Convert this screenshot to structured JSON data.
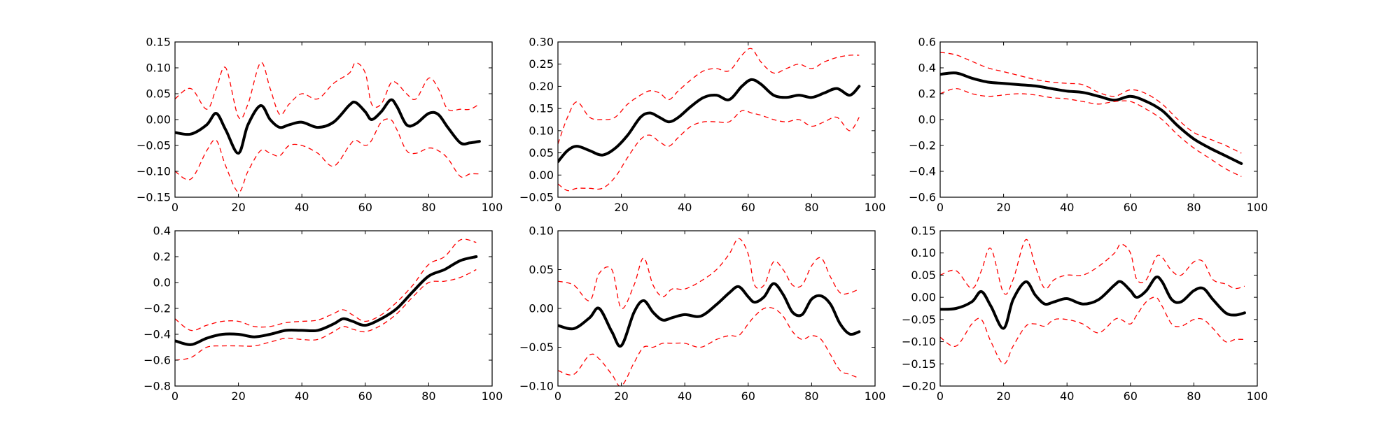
{
  "chart_data": [
    {
      "type": "line",
      "xlim": [
        0,
        100
      ],
      "ylim": [
        -0.15,
        0.15
      ],
      "x_ticks": [
        0,
        20,
        40,
        60,
        80,
        100
      ],
      "y_ticks": [
        -0.15,
        -0.1,
        -0.05,
        0.0,
        0.05,
        0.1,
        0.15
      ],
      "x_tick_labels": [
        "0",
        "20",
        "40",
        "60",
        "80",
        "100"
      ],
      "y_tick_labels": [
        "−0.15",
        "−0.10",
        "−0.05",
        "0.00",
        "0.05",
        "0.10",
        "0.15"
      ],
      "grid": false,
      "x": [
        0,
        5,
        10,
        13,
        16,
        20,
        23,
        27,
        30,
        33,
        36,
        40,
        45,
        50,
        55,
        57,
        60,
        62,
        65,
        68,
        70,
        73,
        76,
        80,
        83,
        86,
        90,
        93,
        96
      ],
      "series": [
        {
          "values": [
            -0.025,
            -0.028,
            -0.01,
            0.012,
            -0.02,
            -0.065,
            -0.01,
            0.027,
            0.0,
            -0.015,
            -0.01,
            -0.005,
            -0.015,
            -0.005,
            0.028,
            0.033,
            0.015,
            0.0,
            0.015,
            0.038,
            0.025,
            -0.01,
            -0.008,
            0.012,
            0.01,
            -0.015,
            -0.045,
            -0.045,
            -0.042
          ],
          "color": "#000000",
          "style": "solid"
        },
        {
          "values": [
            0.04,
            0.06,
            0.02,
            0.06,
            0.1,
            0.005,
            0.03,
            0.11,
            0.06,
            0.01,
            0.03,
            0.05,
            0.04,
            0.07,
            0.09,
            0.11,
            0.09,
            0.03,
            0.03,
            0.07,
            0.07,
            0.05,
            0.04,
            0.08,
            0.06,
            0.02,
            0.02,
            0.02,
            0.03
          ],
          "color": "#ff0000",
          "style": "dashed"
        },
        {
          "values": [
            -0.1,
            -0.115,
            -0.06,
            -0.04,
            -0.09,
            -0.14,
            -0.1,
            -0.06,
            -0.065,
            -0.07,
            -0.05,
            -0.05,
            -0.065,
            -0.09,
            -0.05,
            -0.04,
            -0.05,
            -0.04,
            -0.005,
            0.0,
            -0.02,
            -0.06,
            -0.065,
            -0.055,
            -0.06,
            -0.075,
            -0.11,
            -0.105,
            -0.105
          ],
          "color": "#ff0000",
          "style": "dashed"
        }
      ]
    },
    {
      "type": "line",
      "xlim": [
        0,
        100
      ],
      "ylim": [
        -0.05,
        0.3
      ],
      "x_ticks": [
        0,
        20,
        40,
        60,
        80,
        100
      ],
      "y_ticks": [
        -0.05,
        0.0,
        0.05,
        0.1,
        0.15,
        0.2,
        0.25,
        0.3
      ],
      "x_tick_labels": [
        "0",
        "20",
        "40",
        "60",
        "80",
        "100"
      ],
      "y_tick_labels": [
        "−0.05",
        "0.00",
        "0.05",
        "0.10",
        "0.15",
        "0.20",
        "0.25",
        "0.30"
      ],
      "grid": false,
      "x": [
        0,
        3,
        6,
        10,
        14,
        18,
        22,
        26,
        29,
        32,
        35,
        38,
        42,
        46,
        50,
        54,
        58,
        61,
        64,
        68,
        72,
        76,
        80,
        84,
        88,
        92,
        95
      ],
      "series": [
        {
          "values": [
            0.03,
            0.055,
            0.065,
            0.055,
            0.045,
            0.06,
            0.09,
            0.13,
            0.14,
            0.13,
            0.12,
            0.13,
            0.155,
            0.175,
            0.18,
            0.17,
            0.2,
            0.215,
            0.205,
            0.18,
            0.175,
            0.18,
            0.175,
            0.185,
            0.195,
            0.18,
            0.2
          ],
          "color": "#000000",
          "style": "solid"
        },
        {
          "values": [
            0.07,
            0.13,
            0.165,
            0.13,
            0.125,
            0.13,
            0.16,
            0.18,
            0.19,
            0.185,
            0.17,
            0.19,
            0.215,
            0.235,
            0.24,
            0.235,
            0.27,
            0.285,
            0.255,
            0.23,
            0.24,
            0.25,
            0.24,
            0.255,
            0.265,
            0.27,
            0.27
          ],
          "color": "#ff0000",
          "style": "dashed"
        },
        {
          "values": [
            -0.02,
            -0.035,
            -0.03,
            -0.03,
            -0.03,
            -0.005,
            0.04,
            0.08,
            0.09,
            0.075,
            0.065,
            0.085,
            0.11,
            0.12,
            0.12,
            0.12,
            0.145,
            0.14,
            0.135,
            0.125,
            0.12,
            0.125,
            0.11,
            0.12,
            0.13,
            0.1,
            0.13
          ],
          "color": "#ff0000",
          "style": "dashed"
        }
      ]
    },
    {
      "type": "line",
      "xlim": [
        0,
        100
      ],
      "ylim": [
        -0.6,
        0.6
      ],
      "x_ticks": [
        0,
        20,
        40,
        60,
        80,
        100
      ],
      "y_ticks": [
        -0.6,
        -0.4,
        -0.2,
        0.0,
        0.2,
        0.4,
        0.6
      ],
      "x_tick_labels": [
        "0",
        "20",
        "40",
        "60",
        "80",
        "100"
      ],
      "y_tick_labels": [
        "−0.6",
        "−0.4",
        "−0.2",
        "0.0",
        "0.2",
        "0.4",
        "0.6"
      ],
      "grid": false,
      "x": [
        0,
        5,
        10,
        15,
        20,
        25,
        30,
        35,
        40,
        45,
        50,
        55,
        60,
        65,
        70,
        75,
        80,
        85,
        90,
        95
      ],
      "series": [
        {
          "values": [
            0.35,
            0.36,
            0.32,
            0.29,
            0.28,
            0.27,
            0.26,
            0.24,
            0.22,
            0.21,
            0.18,
            0.15,
            0.18,
            0.14,
            0.07,
            -0.05,
            -0.15,
            -0.22,
            -0.28,
            -0.34
          ],
          "color": "#000000",
          "style": "solid"
        },
        {
          "values": [
            0.52,
            0.5,
            0.45,
            0.4,
            0.37,
            0.34,
            0.31,
            0.29,
            0.28,
            0.27,
            0.21,
            0.18,
            0.23,
            0.2,
            0.12,
            0.0,
            -0.1,
            -0.15,
            -0.2,
            -0.26
          ],
          "color": "#ff0000",
          "style": "dashed"
        },
        {
          "values": [
            0.2,
            0.24,
            0.2,
            0.18,
            0.19,
            0.2,
            0.19,
            0.17,
            0.16,
            0.14,
            0.12,
            0.14,
            0.14,
            0.08,
            0.0,
            -0.12,
            -0.22,
            -0.3,
            -0.38,
            -0.44
          ],
          "color": "#ff0000",
          "style": "dashed"
        }
      ]
    },
    {
      "type": "line",
      "xlim": [
        0,
        100
      ],
      "ylim": [
        -0.8,
        0.4
      ],
      "x_ticks": [
        0,
        20,
        40,
        60,
        80,
        100
      ],
      "y_ticks": [
        -0.8,
        -0.6,
        -0.4,
        -0.2,
        0.0,
        0.2,
        0.4
      ],
      "x_tick_labels": [
        "0",
        "20",
        "40",
        "60",
        "80",
        "100"
      ],
      "y_tick_labels": [
        "−0.8",
        "−0.6",
        "−0.4",
        "−0.2",
        "0.0",
        "0.2",
        "0.4"
      ],
      "grid": false,
      "x": [
        0,
        5,
        10,
        15,
        20,
        25,
        30,
        35,
        40,
        45,
        50,
        53,
        56,
        60,
        65,
        70,
        75,
        80,
        85,
        90,
        95
      ],
      "series": [
        {
          "values": [
            -0.45,
            -0.48,
            -0.43,
            -0.4,
            -0.4,
            -0.42,
            -0.4,
            -0.37,
            -0.37,
            -0.37,
            -0.32,
            -0.28,
            -0.3,
            -0.33,
            -0.28,
            -0.2,
            -0.07,
            0.05,
            0.1,
            0.17,
            0.2
          ],
          "color": "#000000",
          "style": "solid"
        },
        {
          "values": [
            -0.28,
            -0.37,
            -0.33,
            -0.3,
            -0.3,
            -0.34,
            -0.34,
            -0.31,
            -0.3,
            -0.29,
            -0.24,
            -0.21,
            -0.25,
            -0.3,
            -0.25,
            -0.15,
            -0.02,
            0.14,
            0.2,
            0.33,
            0.31
          ],
          "color": "#ff0000",
          "style": "dashed"
        },
        {
          "values": [
            -0.6,
            -0.58,
            -0.5,
            -0.49,
            -0.49,
            -0.49,
            -0.46,
            -0.43,
            -0.44,
            -0.44,
            -0.38,
            -0.34,
            -0.36,
            -0.38,
            -0.33,
            -0.24,
            -0.11,
            0.0,
            0.01,
            0.04,
            0.1
          ],
          "color": "#ff0000",
          "style": "dashed"
        }
      ]
    },
    {
      "type": "line",
      "xlim": [
        0,
        100
      ],
      "ylim": [
        -0.1,
        0.1
      ],
      "x_ticks": [
        0,
        20,
        40,
        60,
        80,
        100
      ],
      "y_ticks": [
        -0.1,
        -0.05,
        0.0,
        0.05,
        0.1
      ],
      "x_tick_labels": [
        "0",
        "20",
        "40",
        "60",
        "80",
        "100"
      ],
      "y_tick_labels": [
        "−0.10",
        "−0.05",
        "0.00",
        "0.05",
        "0.10"
      ],
      "grid": false,
      "x": [
        0,
        5,
        10,
        13,
        17,
        20,
        24,
        27,
        30,
        33,
        36,
        40,
        45,
        50,
        54,
        57,
        60,
        62,
        65,
        68,
        71,
        74,
        77,
        80,
        83,
        86,
        89,
        92,
        95
      ],
      "series": [
        {
          "values": [
            -0.022,
            -0.026,
            -0.012,
            0.0,
            -0.03,
            -0.048,
            -0.005,
            0.01,
            -0.005,
            -0.015,
            -0.012,
            -0.008,
            -0.01,
            0.005,
            0.02,
            0.028,
            0.015,
            0.008,
            0.015,
            0.032,
            0.018,
            -0.005,
            -0.008,
            0.012,
            0.016,
            0.005,
            -0.02,
            -0.033,
            -0.03
          ],
          "color": "#000000",
          "style": "solid"
        },
        {
          "values": [
            0.035,
            0.03,
            0.01,
            0.045,
            0.05,
            0.0,
            0.03,
            0.065,
            0.03,
            0.015,
            0.025,
            0.025,
            0.035,
            0.05,
            0.07,
            0.09,
            0.07,
            0.03,
            0.03,
            0.06,
            0.05,
            0.03,
            0.03,
            0.055,
            0.065,
            0.04,
            0.02,
            0.02,
            0.025
          ],
          "color": "#ff0000",
          "style": "dashed"
        },
        {
          "values": [
            -0.08,
            -0.085,
            -0.06,
            -0.065,
            -0.085,
            -0.1,
            -0.07,
            -0.05,
            -0.05,
            -0.045,
            -0.045,
            -0.045,
            -0.05,
            -0.04,
            -0.035,
            -0.035,
            -0.02,
            -0.01,
            0.0,
            0.0,
            -0.01,
            -0.03,
            -0.04,
            -0.035,
            -0.04,
            -0.06,
            -0.08,
            -0.085,
            -0.09
          ],
          "color": "#ff0000",
          "style": "dashed"
        }
      ]
    },
    {
      "type": "line",
      "xlim": [
        0,
        100
      ],
      "ylim": [
        -0.2,
        0.15
      ],
      "x_ticks": [
        0,
        20,
        40,
        60,
        80,
        100
      ],
      "y_ticks": [
        -0.2,
        -0.15,
        -0.1,
        -0.05,
        0.0,
        0.05,
        0.1,
        0.15
      ],
      "x_tick_labels": [
        "0",
        "20",
        "40",
        "60",
        "80",
        "100"
      ],
      "y_tick_labels": [
        "−0.20",
        "−0.15",
        "−0.10",
        "−0.05",
        "0.00",
        "0.05",
        "0.10",
        "0.15"
      ],
      "grid": false,
      "x": [
        0,
        5,
        10,
        13,
        16,
        20,
        23,
        27,
        30,
        33,
        36,
        40,
        45,
        50,
        55,
        57,
        60,
        62,
        65,
        68,
        70,
        73,
        76,
        80,
        83,
        86,
        90,
        93,
        96
      ],
      "series": [
        {
          "values": [
            -0.027,
            -0.025,
            -0.01,
            0.013,
            -0.02,
            -0.07,
            -0.005,
            0.035,
            0.005,
            -0.015,
            -0.01,
            -0.003,
            -0.015,
            -0.005,
            0.028,
            0.035,
            0.015,
            0.0,
            0.015,
            0.045,
            0.035,
            -0.005,
            -0.01,
            0.015,
            0.02,
            -0.005,
            -0.035,
            -0.04,
            -0.035
          ],
          "color": "#000000",
          "style": "solid"
        },
        {
          "values": [
            0.05,
            0.06,
            0.02,
            0.06,
            0.11,
            0.01,
            0.04,
            0.13,
            0.07,
            0.02,
            0.04,
            0.05,
            0.05,
            0.07,
            0.1,
            0.12,
            0.1,
            0.04,
            0.04,
            0.09,
            0.09,
            0.06,
            0.05,
            0.08,
            0.08,
            0.04,
            0.03,
            0.02,
            0.025
          ],
          "color": "#ff0000",
          "style": "dashed"
        },
        {
          "values": [
            -0.09,
            -0.11,
            -0.06,
            -0.05,
            -0.1,
            -0.15,
            -0.11,
            -0.065,
            -0.06,
            -0.065,
            -0.05,
            -0.05,
            -0.06,
            -0.08,
            -0.05,
            -0.05,
            -0.06,
            -0.04,
            -0.01,
            0.0,
            -0.02,
            -0.06,
            -0.065,
            -0.05,
            -0.05,
            -0.07,
            -0.1,
            -0.095,
            -0.095
          ],
          "color": "#ff0000",
          "style": "dashed"
        }
      ]
    }
  ]
}
